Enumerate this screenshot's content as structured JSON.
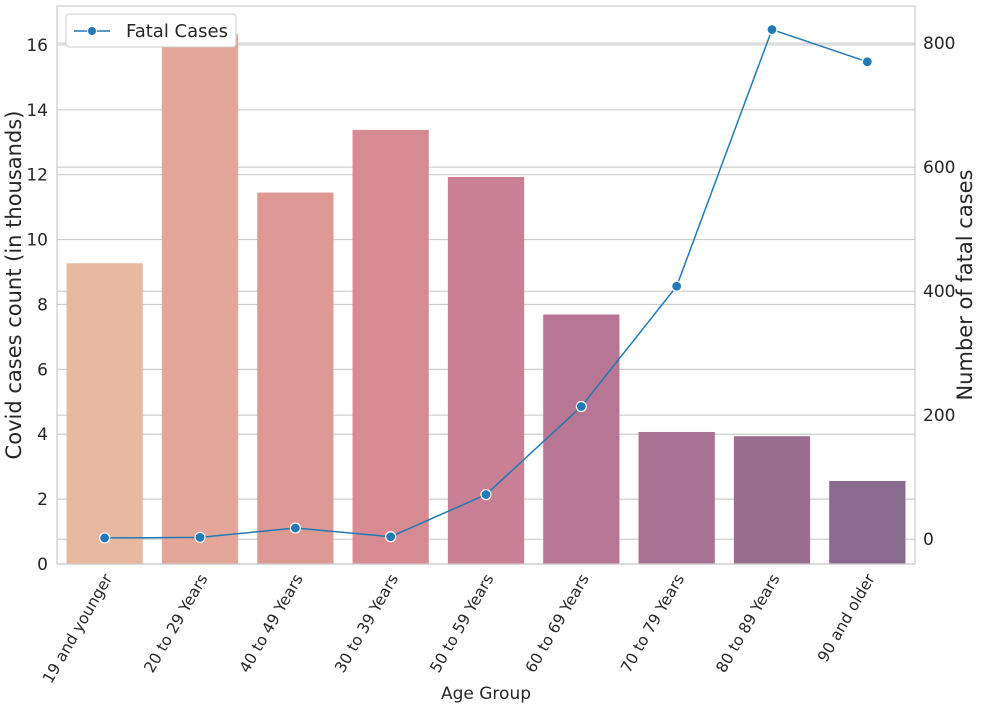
{
  "chart_data": {
    "type": "bar",
    "categories": [
      "19 and younger",
      "20 to 29 Years",
      "40 to 49 Years",
      "30 to 39 Years",
      "50 to 59 Years",
      "60 to 69 Years",
      "70 to 79 Years",
      "80 to 89 Years",
      "90 and older"
    ],
    "bar_values": [
      9.27,
      16.33,
      11.45,
      13.38,
      11.93,
      7.69,
      4.07,
      3.94,
      2.56
    ],
    "bar_colors": [
      "#e7b9a1",
      "#e3a698",
      "#dd9a95",
      "#d68b92",
      "#c97f94",
      "#b77693",
      "#a87292",
      "#9a6e8e",
      "#8a6a8e"
    ],
    "line_series": {
      "name": "Fatal Cases",
      "values": [
        2,
        3,
        18,
        4,
        72,
        214,
        408,
        822,
        770
      ],
      "color": "#2179b5"
    },
    "xlabel": "Age Group",
    "ylabel": "Covid cases count (in thousands)",
    "y2label": "Number of fatal cases",
    "ylim": [
      0,
      17.2
    ],
    "y2lim": [
      -40,
      860
    ],
    "yticks": [
      0,
      2,
      4,
      6,
      8,
      10,
      12,
      14,
      16
    ],
    "y2ticks": [
      0,
      200,
      400,
      600,
      800
    ],
    "grid": true,
    "legend_position": "top-left"
  }
}
